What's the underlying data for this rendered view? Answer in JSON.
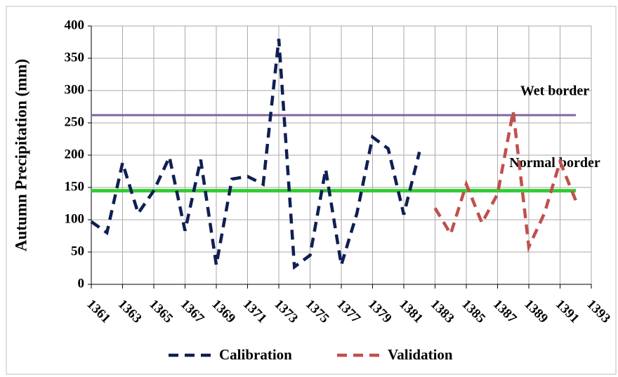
{
  "chart_data": {
    "type": "line",
    "y_label": "Autumn  Precipitation (mm)",
    "xlim": [
      1361,
      1393
    ],
    "xticks": [
      1361,
      1363,
      1365,
      1367,
      1369,
      1371,
      1373,
      1375,
      1377,
      1379,
      1381,
      1383,
      1385,
      1387,
      1389,
      1391,
      1393
    ],
    "ylim": [
      0,
      400
    ],
    "yticks": [
      0,
      50,
      100,
      150,
      200,
      250,
      300,
      350,
      400
    ],
    "grid": true,
    "series": [
      {
        "name": "Calibration",
        "color": "#0f1f52",
        "x": [
          1361,
          1362,
          1363,
          1364,
          1365,
          1366,
          1367,
          1368,
          1369,
          1370,
          1371,
          1372,
          1373,
          1374,
          1375,
          1376,
          1377,
          1378,
          1379,
          1380,
          1381,
          1382
        ],
        "values": [
          97,
          80,
          188,
          110,
          145,
          197,
          83,
          193,
          30,
          163,
          167,
          155,
          380,
          27,
          45,
          178,
          30,
          110,
          228,
          210,
          108,
          205
        ]
      },
      {
        "name": "Validation",
        "color": "#c0504d",
        "x": [
          1383,
          1384,
          1385,
          1386,
          1387,
          1388,
          1389,
          1390,
          1391,
          1392
        ],
        "values": [
          118,
          78,
          155,
          95,
          140,
          268,
          58,
          110,
          190,
          130
        ]
      }
    ],
    "reference_lines": [
      {
        "label": "Wet border",
        "value": 262,
        "color": "#8064a2"
      },
      {
        "label": "Normal border",
        "value": 145,
        "color": "#33cc33"
      }
    ]
  }
}
